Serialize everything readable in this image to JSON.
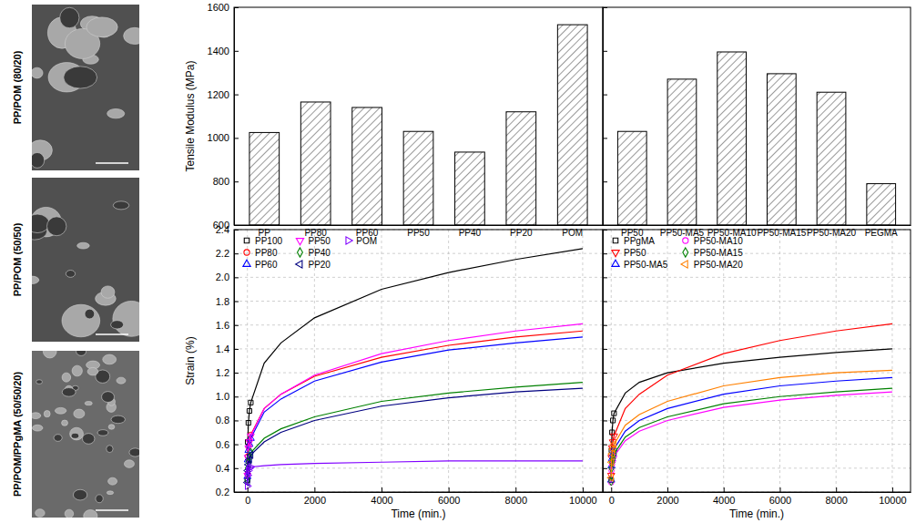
{
  "chart_data": [
    {
      "type": "bar",
      "y_label": "Tensile Modulus (MPa)",
      "categories": [
        "PP",
        "PP80",
        "PP60",
        "PP50",
        "PP40",
        "PP20",
        "POM"
      ],
      "values": [
        1025,
        1165,
        1140,
        1030,
        935,
        1120,
        1520
      ],
      "color": "#000000",
      "ylim": [
        600,
        1600
      ],
      "yticks": [
        600,
        800,
        1000,
        1200,
        1400,
        1600
      ]
    },
    {
      "type": "bar",
      "categories": [
        "PP50",
        "PP50-MA5",
        "PP50-MA10",
        "PP50-MA15",
        "PP50-MA20",
        "PEGMA"
      ],
      "values": [
        1030,
        1270,
        1395,
        1295,
        1210,
        790
      ],
      "color": "#000000",
      "ylim": [
        600,
        1600
      ],
      "yticks": [
        600,
        800,
        1000,
        1200,
        1400,
        1600
      ],
      "tick_labels": "x"
    },
    {
      "type": "line",
      "x_label": "Time (min.)",
      "y_label": "Strain (%)",
      "x": [
        0,
        10,
        30,
        60,
        100,
        500,
        1000,
        2000,
        4000,
        6000,
        8000,
        10000
      ],
      "series": [
        {
          "name": "PP100",
          "color": "#000000",
          "marker": "square",
          "values": [
            0.3,
            0.62,
            0.78,
            0.88,
            0.95,
            1.28,
            1.45,
            1.66,
            1.9,
            2.04,
            2.15,
            2.24
          ]
        },
        {
          "name": "PP80",
          "color": "#ff0000",
          "marker": "circle",
          "values": [
            0.35,
            0.5,
            0.58,
            0.63,
            0.68,
            0.9,
            1.02,
            1.17,
            1.33,
            1.43,
            1.5,
            1.55
          ]
        },
        {
          "name": "PP60",
          "color": "#0000ff",
          "marker": "triangle",
          "values": [
            0.33,
            0.47,
            0.55,
            0.6,
            0.65,
            0.87,
            0.98,
            1.13,
            1.29,
            1.39,
            1.45,
            1.5
          ]
        },
        {
          "name": "PP50",
          "color": "#ff00ff",
          "marker": "triangle-down",
          "values": [
            0.34,
            0.49,
            0.57,
            0.62,
            0.67,
            0.9,
            1.02,
            1.18,
            1.36,
            1.47,
            1.55,
            1.61
          ]
        },
        {
          "name": "PP40",
          "color": "#008000",
          "marker": "diamond",
          "values": [
            0.3,
            0.4,
            0.45,
            0.49,
            0.53,
            0.65,
            0.73,
            0.83,
            0.96,
            1.03,
            1.08,
            1.12
          ]
        },
        {
          "name": "PP20",
          "color": "#000080",
          "marker": "triangle-left",
          "values": [
            0.28,
            0.38,
            0.43,
            0.47,
            0.51,
            0.62,
            0.7,
            0.8,
            0.92,
            0.99,
            1.04,
            1.07
          ]
        },
        {
          "name": "POM",
          "color": "#8000ff",
          "marker": "triangle-right",
          "values": [
            0.25,
            0.34,
            0.38,
            0.4,
            0.41,
            0.42,
            0.43,
            0.44,
            0.45,
            0.46,
            0.46,
            0.46
          ]
        }
      ],
      "xlim": [
        -400,
        10600
      ],
      "xticks": [
        0,
        2000,
        4000,
        6000,
        8000,
        10000
      ],
      "ylim": [
        0.2,
        2.4
      ],
      "yticks": [
        0.2,
        0.4,
        0.6,
        0.8,
        {
          "value": 1,
          "label": "1.0"
        },
        1.2,
        1.4,
        1.6,
        1.8,
        {
          "value": 2,
          "label": "2.0"
        },
        2.2,
        2.4
      ],
      "grid": true,
      "legend": "upper left"
    },
    {
      "type": "line",
      "x_label": "Time (min.)",
      "x": [
        0,
        10,
        30,
        60,
        100,
        500,
        1000,
        2000,
        4000,
        6000,
        8000,
        10000
      ],
      "series": [
        {
          "name": "PPgMA",
          "color": "#000000",
          "marker": "square",
          "values": [
            0.3,
            0.55,
            0.7,
            0.8,
            0.86,
            1.03,
            1.12,
            1.2,
            1.28,
            1.33,
            1.37,
            1.4
          ]
        },
        {
          "name": "PP50",
          "color": "#ff0000",
          "marker": "triangle-down",
          "values": [
            0.34,
            0.49,
            0.57,
            0.62,
            0.67,
            0.9,
            1.02,
            1.18,
            1.36,
            1.47,
            1.55,
            1.61
          ]
        },
        {
          "name": "PP50-MA5",
          "color": "#0000ff",
          "marker": "triangle",
          "values": [
            0.3,
            0.42,
            0.48,
            0.52,
            0.56,
            0.71,
            0.8,
            0.9,
            1.02,
            1.09,
            1.13,
            1.16
          ]
        },
        {
          "name": "PP50-MA10",
          "color": "#ff00ff",
          "marker": "circle",
          "values": [
            0.28,
            0.38,
            0.43,
            0.46,
            0.5,
            0.63,
            0.71,
            0.8,
            0.91,
            0.97,
            1.01,
            1.04
          ]
        },
        {
          "name": "PP50-MA15",
          "color": "#008000",
          "marker": "diamond",
          "values": [
            0.29,
            0.4,
            0.45,
            0.48,
            0.52,
            0.66,
            0.74,
            0.83,
            0.94,
            1.0,
            1.04,
            1.07
          ]
        },
        {
          "name": "PP50-MA20",
          "color": "#ff8000",
          "marker": "triangle-left",
          "values": [
            0.32,
            0.45,
            0.52,
            0.56,
            0.6,
            0.76,
            0.85,
            0.96,
            1.09,
            1.16,
            1.2,
            1.22
          ]
        }
      ],
      "xlim": [
        -300,
        10650
      ],
      "xticks": [
        0,
        2000,
        4000,
        6000,
        8000,
        10000
      ],
      "ylim": [
        0.2,
        2.4
      ],
      "yticks": [
        0.2,
        0.4,
        0.6,
        0.8,
        {
          "value": 1,
          "label": "1.0"
        },
        1.2,
        1.4,
        1.6,
        1.8,
        {
          "value": 2,
          "label": "2.0"
        },
        2.2,
        2.4
      ],
      "grid": true,
      "legend": "upper left",
      "tick_labels": "x"
    }
  ],
  "sem_images": [
    {
      "label": "PP/POM (80/20)"
    },
    {
      "label": "PP/POM (50/50)"
    },
    {
      "label": "PP/POM/PPgMA (50/50/20)"
    }
  ]
}
